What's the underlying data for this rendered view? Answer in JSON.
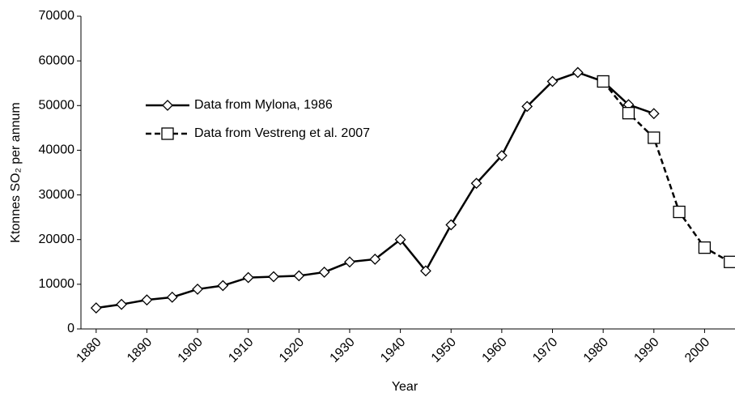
{
  "chart_data": {
    "type": "line",
    "x_label": "Year",
    "y_label": "Ktonnes SO₂ per annum",
    "series": [
      {
        "name": "Data from Mylona, 1986",
        "color": "#000000",
        "marker": "diamond",
        "dashed": false,
        "x": [
          1880,
          1885,
          1890,
          1895,
          1900,
          1905,
          1910,
          1915,
          1920,
          1925,
          1930,
          1935,
          1940,
          1945,
          1950,
          1955,
          1960,
          1965,
          1970,
          1975,
          1980,
          1985,
          1990
        ],
        "values": [
          4700,
          5500,
          6500,
          7100,
          8900,
          9700,
          11500,
          11700,
          11900,
          12700,
          15000,
          15600,
          20000,
          13000,
          23300,
          32600,
          38800,
          49800,
          55400,
          57400,
          55400,
          50200,
          48200
        ]
      },
      {
        "name": "Data from Vestreng et al. 2007",
        "color": "#000000",
        "marker": "square",
        "dashed": true,
        "x": [
          1980,
          1985,
          1990,
          1995,
          2000,
          2005
        ],
        "values": [
          55400,
          48300,
          42800,
          26200,
          18200,
          15000
        ]
      }
    ],
    "xlim": [
      1877,
      2006
    ],
    "xticks": [
      1880,
      1890,
      1900,
      1910,
      1920,
      1930,
      1940,
      1950,
      1960,
      1970,
      1980,
      1990,
      2000
    ],
    "ylim": [
      0,
      70000
    ],
    "yticks": [
      0,
      10000,
      20000,
      30000,
      40000,
      50000,
      60000,
      70000
    ]
  }
}
